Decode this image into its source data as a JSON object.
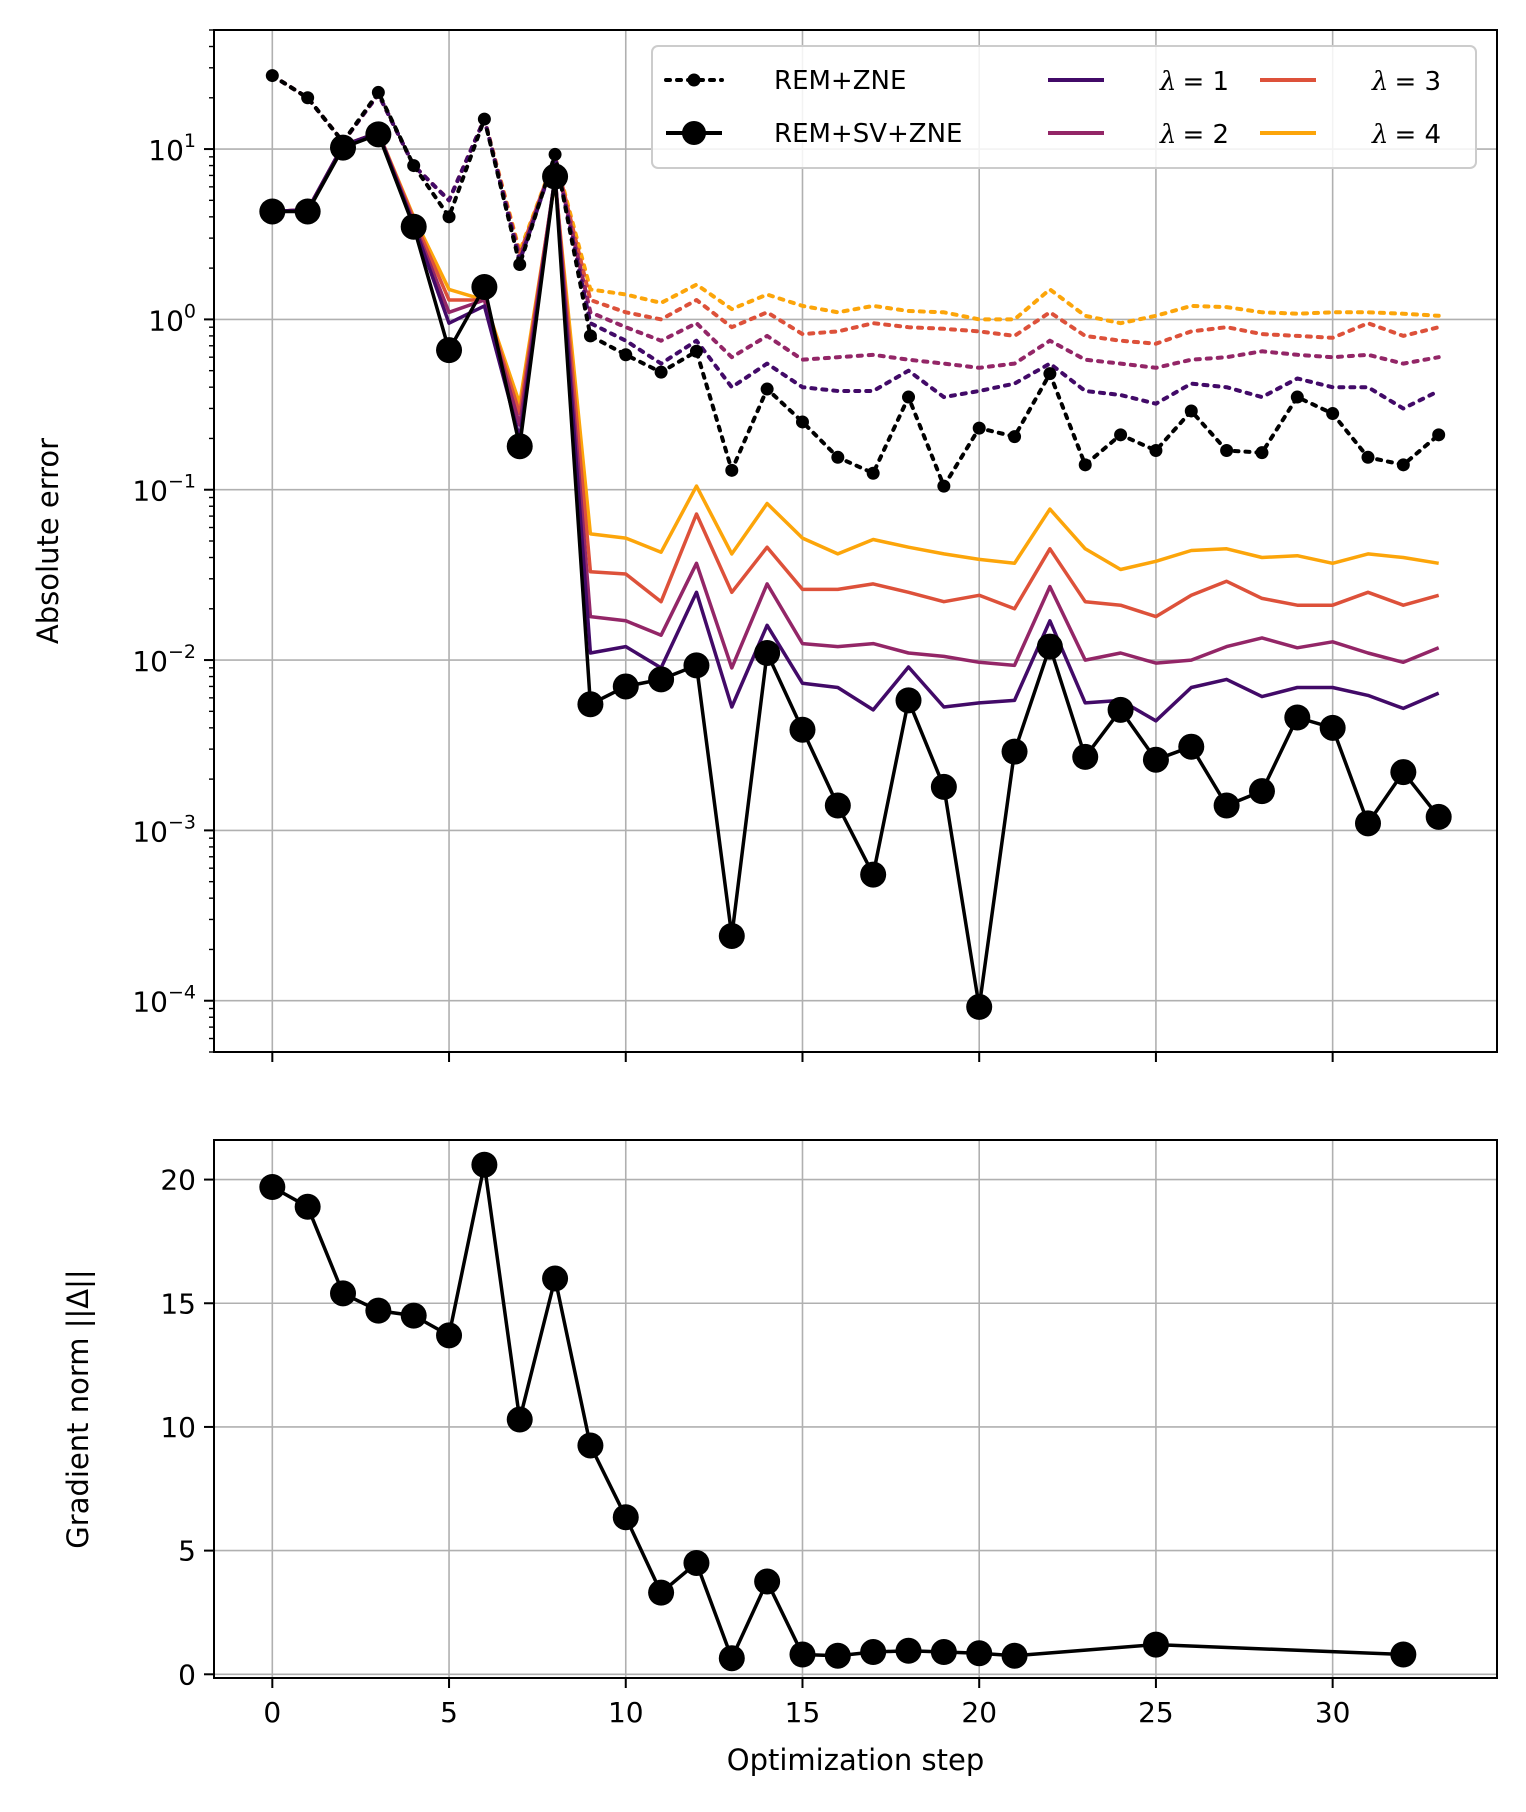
{
  "chart_data": [
    {
      "type": "line",
      "yscale": "log",
      "ylabel": "Absolute error",
      "xlim": [
        -1.65,
        34.65
      ],
      "ylim": [
        5e-05,
        50
      ],
      "xticks": [
        0,
        5,
        10,
        15,
        20,
        25,
        30
      ],
      "yticks": [
        {
          "value": 10,
          "base": "10",
          "exp": "1"
        },
        {
          "value": 1,
          "base": "10",
          "exp": "0"
        },
        {
          "value": 0.1,
          "base": "10",
          "exp": "−1"
        },
        {
          "value": 0.01,
          "base": "10",
          "exp": "−2"
        },
        {
          "value": 0.001,
          "base": "10",
          "exp": "−3"
        },
        {
          "value": 0.0001,
          "base": "10",
          "exp": "−4"
        }
      ],
      "grid": true,
      "legend": {
        "location": "top-right",
        "entries": [
          {
            "label": "REM+ZNE",
            "style": "dotted-marker",
            "color": "#000000"
          },
          {
            "label": "REM+SV+ZNE",
            "style": "solid-marker",
            "color": "#000000"
          },
          {
            "label": "λ = 1",
            "sym": "λ",
            "eq": "= 1",
            "style": "solid",
            "color": "#420a68"
          },
          {
            "label": "λ = 2",
            "sym": "λ",
            "eq": "= 2",
            "style": "solid",
            "color": "#932667"
          },
          {
            "label": "λ = 3",
            "sym": "λ",
            "eq": "= 3",
            "style": "solid",
            "color": "#dd513a"
          },
          {
            "label": "λ = 4",
            "sym": "λ",
            "eq": "= 4",
            "style": "solid",
            "color": "#fca50a"
          }
        ]
      },
      "x": [
        0,
        1,
        2,
        3,
        4,
        5,
        6,
        7,
        8,
        9,
        10,
        11,
        12,
        13,
        14,
        15,
        16,
        17,
        18,
        19,
        20,
        21,
        22,
        23,
        24,
        25,
        26,
        27,
        28,
        29,
        30,
        31,
        32,
        33
      ],
      "series": [
        {
          "name": "REM+ZNE λ=4",
          "color": "#fca50a",
          "style": "dotted",
          "values": [
            27,
            20,
            11,
            21,
            8,
            5,
            15,
            2.5,
            9,
            1.5,
            1.4,
            1.25,
            1.6,
            1.15,
            1.4,
            1.2,
            1.1,
            1.2,
            1.12,
            1.1,
            1.0,
            1.0,
            1.5,
            1.05,
            0.95,
            1.05,
            1.2,
            1.18,
            1.1,
            1.08,
            1.1,
            1.1,
            1.08,
            1.05
          ]
        },
        {
          "name": "REM+ZNE λ=3",
          "color": "#dd513a",
          "style": "dotted",
          "values": [
            27,
            20,
            11,
            21,
            8,
            5,
            15,
            2.4,
            9,
            1.3,
            1.1,
            1.0,
            1.3,
            0.9,
            1.1,
            0.82,
            0.85,
            0.95,
            0.9,
            0.88,
            0.85,
            0.8,
            1.1,
            0.8,
            0.75,
            0.72,
            0.85,
            0.9,
            0.82,
            0.8,
            0.78,
            0.95,
            0.8,
            0.9
          ]
        },
        {
          "name": "REM+ZNE λ=2",
          "color": "#932667",
          "style": "dotted",
          "values": [
            27,
            20,
            11,
            21,
            8,
            5,
            15,
            2.3,
            9,
            1.1,
            0.9,
            0.75,
            0.95,
            0.6,
            0.8,
            0.58,
            0.6,
            0.62,
            0.58,
            0.55,
            0.52,
            0.55,
            0.75,
            0.58,
            0.55,
            0.52,
            0.58,
            0.6,
            0.65,
            0.62,
            0.6,
            0.62,
            0.55,
            0.6
          ]
        },
        {
          "name": "REM+ZNE λ=1",
          "color": "#420a68",
          "style": "dotted",
          "values": [
            27,
            20,
            11,
            21,
            8,
            5,
            15,
            2.2,
            9,
            0.95,
            0.75,
            0.55,
            0.75,
            0.4,
            0.55,
            0.4,
            0.38,
            0.38,
            0.5,
            0.35,
            0.38,
            0.42,
            0.55,
            0.38,
            0.36,
            0.32,
            0.42,
            0.4,
            0.35,
            0.45,
            0.4,
            0.4,
            0.3,
            0.38
          ]
        },
        {
          "name": "REM+ZNE",
          "color": "#000000",
          "style": "dotted",
          "marker": true,
          "values": [
            27,
            20,
            11,
            21.5,
            8,
            4,
            15,
            2.1,
            9.3,
            0.8,
            0.62,
            0.49,
            0.65,
            0.13,
            0.39,
            0.25,
            0.155,
            0.125,
            0.35,
            0.105,
            0.23,
            0.205,
            0.48,
            0.14,
            0.21,
            0.17,
            0.29,
            0.17,
            0.165,
            0.35,
            0.28,
            0.155,
            0.14,
            0.21
          ]
        },
        {
          "name": "λ = 4",
          "color": "#fca50a",
          "style": "solid",
          "values": [
            4.3,
            4.4,
            10.5,
            12.5,
            4.0,
            1.5,
            1.3,
            0.32,
            6.5,
            0.055,
            0.052,
            0.043,
            0.105,
            0.042,
            0.083,
            0.052,
            0.042,
            0.051,
            0.046,
            0.042,
            0.039,
            0.037,
            0.077,
            0.045,
            0.034,
            0.038,
            0.044,
            0.045,
            0.04,
            0.041,
            0.037,
            0.042,
            0.04,
            0.037
          ]
        },
        {
          "name": "λ = 3",
          "color": "#dd513a",
          "style": "solid",
          "values": [
            4.3,
            4.4,
            10.5,
            12.5,
            3.9,
            1.3,
            1.3,
            0.28,
            6.8,
            0.033,
            0.032,
            0.022,
            0.072,
            0.025,
            0.046,
            0.026,
            0.026,
            0.028,
            0.025,
            0.022,
            0.024,
            0.02,
            0.045,
            0.022,
            0.021,
            0.018,
            0.024,
            0.029,
            0.023,
            0.021,
            0.021,
            0.025,
            0.021,
            0.024
          ]
        },
        {
          "name": "λ = 2",
          "color": "#932667",
          "style": "solid",
          "values": [
            4.3,
            4.4,
            10.5,
            12.5,
            3.7,
            1.1,
            1.3,
            0.24,
            6.9,
            0.018,
            0.017,
            0.014,
            0.037,
            0.009,
            0.028,
            0.0125,
            0.012,
            0.0125,
            0.011,
            0.0105,
            0.0097,
            0.0093,
            0.027,
            0.01,
            0.011,
            0.0096,
            0.01,
            0.012,
            0.0135,
            0.0118,
            0.0128,
            0.011,
            0.0097,
            0.0118
          ]
        },
        {
          "name": "λ = 1",
          "color": "#420a68",
          "style": "solid",
          "values": [
            4.3,
            4.4,
            10.5,
            12.5,
            3.6,
            0.95,
            1.2,
            0.2,
            7.0,
            0.011,
            0.012,
            0.009,
            0.025,
            0.0053,
            0.016,
            0.0073,
            0.0069,
            0.0051,
            0.0091,
            0.0053,
            0.0056,
            0.0058,
            0.017,
            0.0056,
            0.0058,
            0.0044,
            0.0069,
            0.0077,
            0.0061,
            0.0069,
            0.0069,
            0.0062,
            0.0052,
            0.0064
          ]
        },
        {
          "name": "REM+SV+ZNE",
          "color": "#000000",
          "style": "solid",
          "marker": true,
          "values": [
            4.3,
            4.3,
            10.2,
            12.2,
            3.5,
            0.66,
            1.55,
            0.18,
            6.9,
            0.0055,
            0.007,
            0.0077,
            0.0093,
            0.00024,
            0.011,
            0.0039,
            0.0014,
            0.00055,
            0.0058,
            0.0018,
            9.2e-05,
            0.0029,
            0.012,
            0.0027,
            0.0051,
            0.0026,
            0.0031,
            0.0014,
            0.0017,
            0.0046,
            0.004,
            0.0011,
            0.0022,
            0.0012
          ]
        }
      ]
    },
    {
      "type": "line",
      "xlabel": "Optimization step",
      "ylabel": "Gradient norm ||Δ||",
      "xlim": [
        -1.65,
        34.65
      ],
      "ylim": [
        -0.15,
        21.6
      ],
      "xticks": [
        0,
        5,
        10,
        15,
        20,
        25,
        30
      ],
      "yticks": [
        0,
        5,
        10,
        15,
        20
      ],
      "grid": true,
      "series": [
        {
          "name": "Gradient norm",
          "color": "#000000",
          "style": "solid",
          "marker": true,
          "x": [
            0,
            1,
            2,
            3,
            4,
            5,
            6,
            7,
            8,
            9,
            10,
            11,
            12,
            13,
            14,
            15,
            16,
            17,
            18,
            19,
            20,
            21,
            25,
            32
          ],
          "values": [
            19.7,
            18.9,
            15.4,
            14.7,
            14.5,
            13.7,
            20.6,
            10.3,
            16.0,
            9.25,
            6.35,
            3.3,
            4.5,
            0.65,
            3.75,
            0.8,
            0.75,
            0.9,
            0.95,
            0.9,
            0.85,
            0.75,
            1.2,
            0.8
          ]
        }
      ]
    }
  ]
}
